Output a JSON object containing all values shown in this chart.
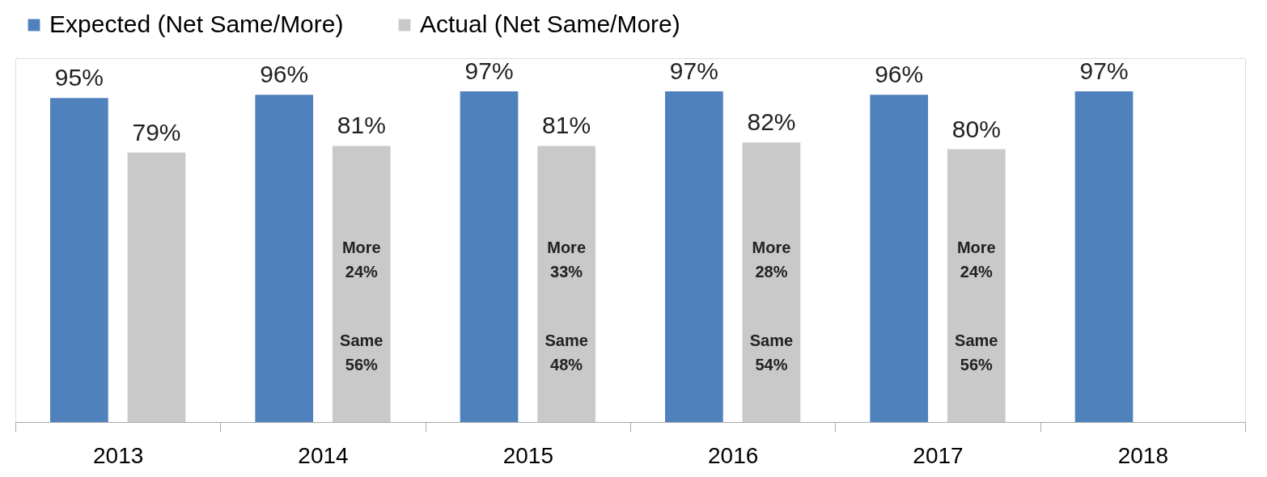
{
  "chart_data": {
    "type": "bar",
    "categories": [
      "2013",
      "2014",
      "2015",
      "2016",
      "2017",
      "2018"
    ],
    "series": [
      {
        "name": "Expected (Net Same/More)",
        "color": "#4f81bd",
        "values": [
          95,
          96,
          97,
          97,
          96,
          97
        ],
        "value_labels": [
          "95%",
          "96%",
          "97%",
          "97%",
          "96%",
          "97%"
        ]
      },
      {
        "name": "Actual (Net Same/More)",
        "color": "#c9c9c9",
        "values": [
          79,
          81,
          81,
          82,
          80,
          null
        ],
        "value_labels": [
          "79%",
          "81%",
          "81%",
          "82%",
          "80%",
          null
        ]
      }
    ],
    "legend": "top",
    "grid": false,
    "annotations": [
      "More 24%",
      "Same 56%",
      "More 33%",
      "Same 48%",
      "More 28%",
      "Same 54%",
      "More 24%",
      "Same 56%"
    ]
  }
}
